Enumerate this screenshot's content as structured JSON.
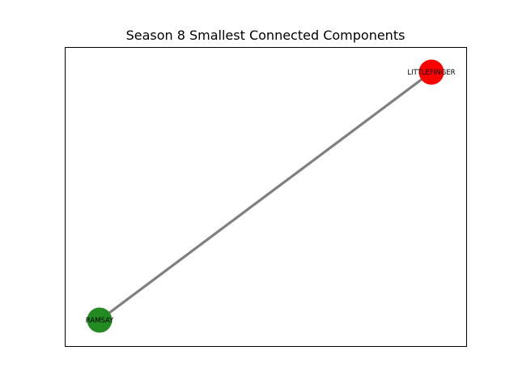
{
  "figure": {
    "title": "Season 8 Smallest Connected Components"
  },
  "graph": {
    "nodes": [
      {
        "id": "littlefinger",
        "label": "LITTLEFINGER",
        "color": "#ff0000"
      },
      {
        "id": "ramsay",
        "label": "RAMSAY",
        "color": "#228b22"
      }
    ],
    "edges": [
      {
        "source": "ramsay",
        "target": "littlefinger",
        "color": "#808080"
      }
    ]
  }
}
